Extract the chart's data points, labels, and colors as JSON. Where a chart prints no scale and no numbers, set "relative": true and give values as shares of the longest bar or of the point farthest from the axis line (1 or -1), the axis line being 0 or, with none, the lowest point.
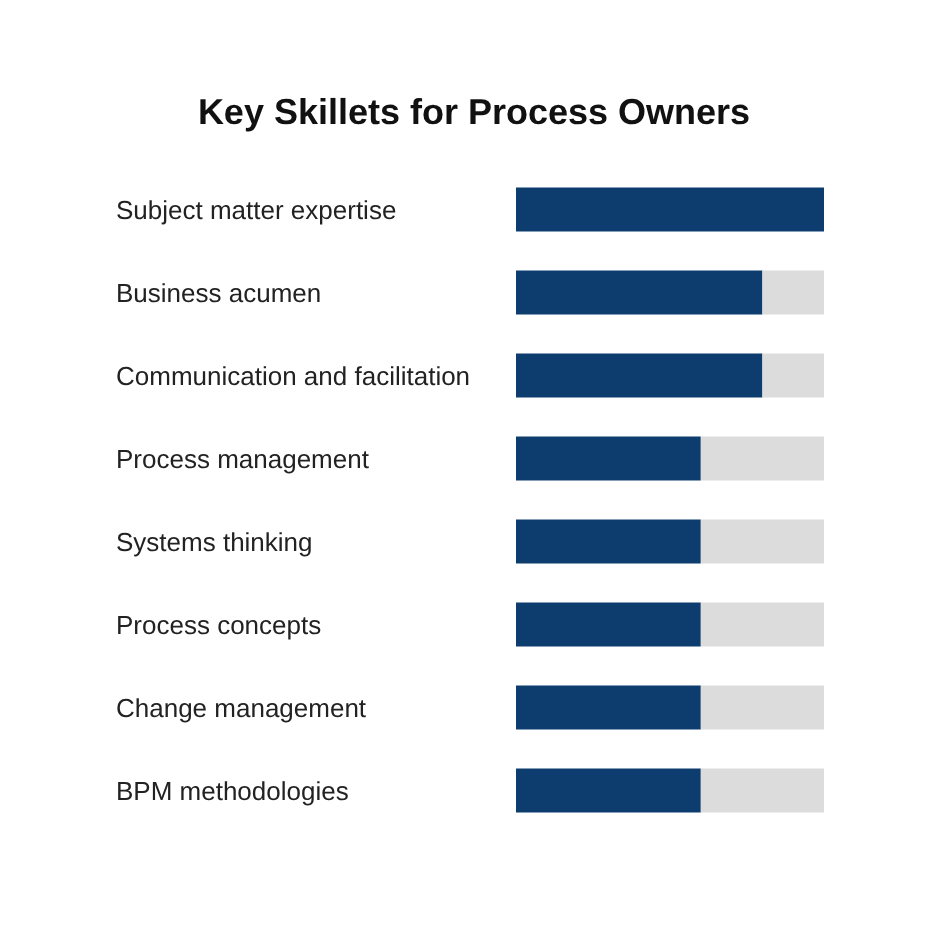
{
  "chart_data": {
    "type": "bar",
    "orientation": "horizontal",
    "stacked": true,
    "relative": true,
    "title": "Key Skillets for Process Owners",
    "categories": [
      "Subject matter expertise",
      "Business acumen",
      "Communication and facilitation",
      "Process management",
      "Systems thinking",
      "Process concepts",
      "Change management",
      "BPM methodologies"
    ],
    "series": [
      {
        "color": "#0d3c6e",
        "values": [
          1,
          0.8,
          0.8,
          0.6,
          0.6,
          0.6,
          0.6,
          0.6
        ]
      },
      {
        "color": "#dcdcdc",
        "values": [
          0,
          0.2,
          0.2,
          0.4,
          0.4,
          0.4,
          0.4,
          0.4
        ]
      }
    ]
  }
}
